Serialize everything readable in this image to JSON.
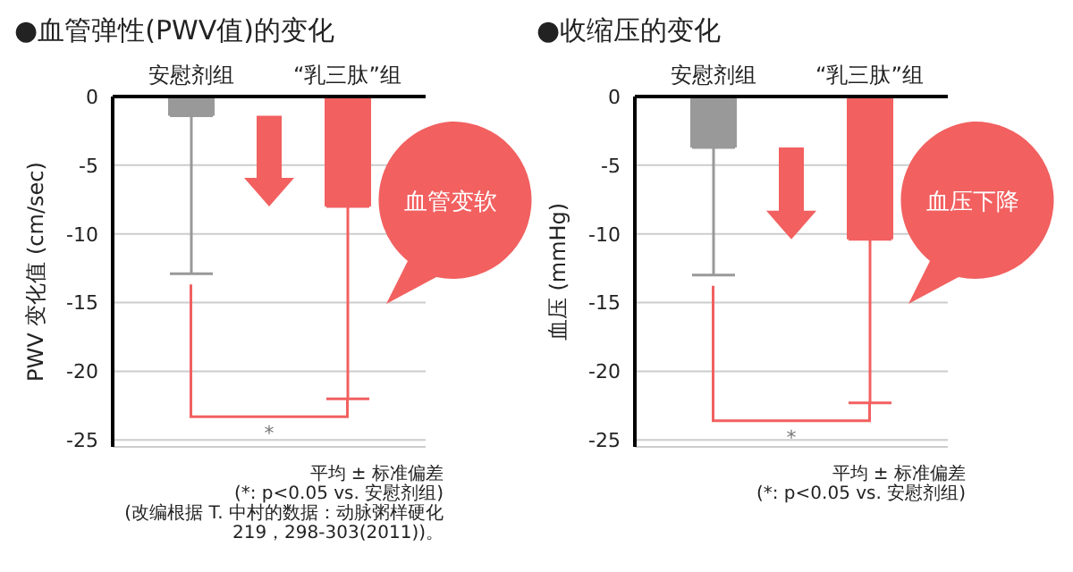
{
  "chart_data": [
    {
      "type": "bar",
      "title": "●血管弹性(PWV值)的变化",
      "ylabel": "PWV 变化值 (cm/sec)",
      "categories": [
        "安慰剂组",
        "“乳三肽”组"
      ],
      "values": [
        -1.4,
        -8.0
      ],
      "colors": [
        "#999999",
        "#f26060"
      ],
      "errors": [
        [
          -12.9,
          -1.4
        ],
        [
          -22,
          -8.0
        ]
      ],
      "ylim": [
        -25.5,
        0
      ],
      "yticks": [
        0,
        -5,
        -10,
        -15,
        -20,
        -25
      ],
      "grid": "y",
      "annotations": [
        "血管变软",
        "*",
        "平均 ± 标准偏差",
        "(*: p<0.05 vs. 安慰剂组)",
        "(改编根据 T. 中村的数据：动脉粥样硬化",
        "219，298-303(2011))。"
      ]
    },
    {
      "type": "bar",
      "title": "●收缩压的变化",
      "ylabel": "血压 (mmHg)",
      "categories": [
        "安慰剂组",
        "“乳三肽”组"
      ],
      "values": [
        -3.7,
        -10.4
      ],
      "colors": [
        "#999999",
        "#f26060"
      ],
      "errors": [
        [
          -13,
          -3.7
        ],
        [
          -22.3,
          -10.4
        ]
      ],
      "ylim": [
        -25.5,
        0
      ],
      "yticks": [
        0,
        -5,
        -10,
        -15,
        -20,
        -25
      ],
      "grid": "y",
      "annotations": [
        "血压下降",
        "*",
        "平均 ± 标准偏差",
        "(*: p<0.05 vs. 安慰剂组)"
      ]
    }
  ]
}
